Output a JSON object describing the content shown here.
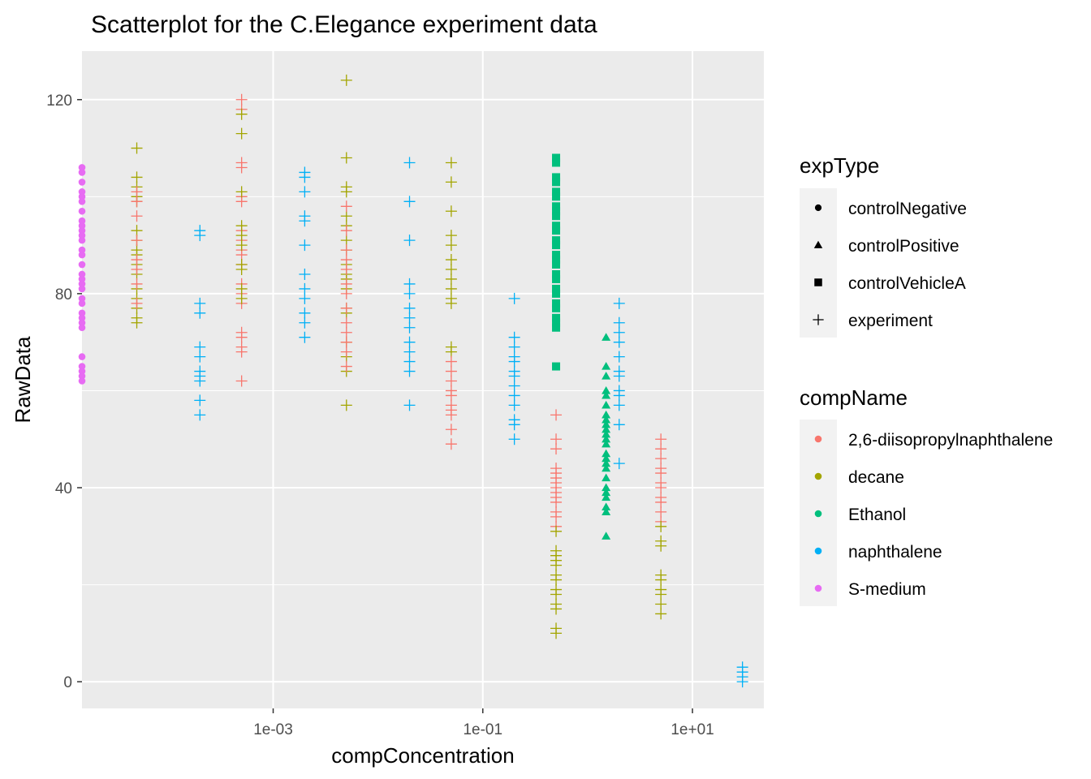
{
  "chart_data": {
    "type": "scatter",
    "title": "Scatterplot for the C.Elegance experiment data",
    "xlabel": "compConcentration",
    "ylabel": "RawData",
    "x_scale": "log10",
    "xlim": [
      1.5e-05,
      48
    ],
    "ylim": [
      -5.5,
      130
    ],
    "x_ticks": [
      {
        "value": 0.001,
        "label": "1e-03"
      },
      {
        "value": 0.1,
        "label": "1e-01"
      },
      {
        "value": 10,
        "label": "1e+01"
      }
    ],
    "y_ticks": [
      {
        "value": 0,
        "label": "0"
      },
      {
        "value": 40,
        "label": "40"
      },
      {
        "value": 80,
        "label": "80"
      },
      {
        "value": 120,
        "label": "120"
      }
    ],
    "grid": true,
    "legend_position": "right",
    "legend_shape": {
      "title": "expType",
      "entries": [
        {
          "name": "controlNegative",
          "shape": "circle"
        },
        {
          "name": "controlPositive",
          "shape": "triangle"
        },
        {
          "name": "controlVehicleA",
          "shape": "square"
        },
        {
          "name": "experiment",
          "shape": "plus"
        }
      ]
    },
    "legend_color": {
      "title": "compName",
      "entries": [
        {
          "name": "2,6-diisopropylnaphthalene",
          "color": "#F8766D"
        },
        {
          "name": "decane",
          "color": "#A3A500"
        },
        {
          "name": "Ethanol",
          "color": "#00BF7D"
        },
        {
          "name": "naphthalene",
          "color": "#00B0F6"
        },
        {
          "name": "S-medium",
          "color": "#E76BF3"
        }
      ]
    },
    "series": [
      {
        "comp": "S-medium",
        "exp": "controlNegative",
        "x": 1.5e-05,
        "y": [
          106,
          105,
          103,
          101,
          100,
          99,
          97,
          95,
          94,
          93,
          92,
          91,
          89,
          88,
          86,
          84,
          83,
          82,
          81,
          79,
          78,
          76,
          75,
          74,
          73,
          67,
          65,
          64,
          63,
          62
        ]
      },
      {
        "comp": "decane",
        "exp": "experiment",
        "x": 5e-05,
        "y": [
          110,
          104,
          102,
          100,
          99,
          93,
          91,
          89,
          88,
          86,
          84,
          81,
          79,
          77,
          75,
          74
        ]
      },
      {
        "comp": "2,6-diisopropylnaphthalene",
        "exp": "experiment",
        "x": 5e-05,
        "y": [
          101,
          99,
          96,
          91,
          87,
          85,
          82,
          78
        ]
      },
      {
        "comp": "naphthalene",
        "exp": "experiment",
        "x": 0.0002,
        "y": [
          93,
          92,
          78,
          76,
          69,
          67,
          64,
          63,
          62,
          58,
          55
        ]
      },
      {
        "comp": "2,6-diisopropylnaphthalene",
        "exp": "experiment",
        "x": 0.0005,
        "y": [
          120,
          118,
          107,
          106,
          100,
          99,
          93,
          91,
          89,
          88,
          86,
          82,
          80,
          78,
          72,
          71,
          69,
          68,
          62
        ]
      },
      {
        "comp": "decane",
        "exp": "experiment",
        "x": 0.0005,
        "y": [
          117,
          113,
          101,
          94,
          92,
          90,
          86,
          85,
          81,
          79
        ]
      },
      {
        "comp": "naphthalene",
        "exp": "experiment",
        "x": 0.002,
        "y": [
          105,
          104,
          101,
          96,
          95,
          90,
          84,
          81,
          79,
          76,
          74,
          71
        ]
      },
      {
        "comp": "decane",
        "exp": "experiment",
        "x": 0.005,
        "y": [
          124,
          108,
          102,
          101,
          96,
          94,
          91,
          89,
          86,
          84,
          83,
          81,
          77,
          76,
          70,
          67,
          64,
          57
        ]
      },
      {
        "comp": "2,6-diisopropylnaphthalene",
        "exp": "experiment",
        "x": 0.005,
        "y": [
          98,
          93,
          89,
          87,
          85,
          82,
          80,
          77,
          74,
          72,
          70,
          68,
          65
        ]
      },
      {
        "comp": "naphthalene",
        "exp": "experiment",
        "x": 0.02,
        "y": [
          107,
          99,
          91,
          82,
          80,
          77,
          75,
          73,
          70,
          68,
          66,
          64,
          57
        ]
      },
      {
        "comp": "decane",
        "exp": "experiment",
        "x": 0.05,
        "y": [
          107,
          103,
          97,
          92,
          90,
          87,
          85,
          83,
          81,
          79,
          78,
          69,
          68
        ]
      },
      {
        "comp": "2,6-diisopropylnaphthalene",
        "exp": "experiment",
        "x": 0.05,
        "y": [
          66,
          64,
          62,
          60,
          59,
          57,
          56,
          55,
          52,
          49
        ]
      },
      {
        "comp": "naphthalene",
        "exp": "experiment",
        "x": 0.2,
        "y": [
          79,
          71,
          69,
          67,
          66,
          64,
          63,
          61,
          59,
          57,
          54,
          53,
          50
        ]
      },
      {
        "comp": "Ethanol",
        "exp": "controlVehicleA",
        "x": 0.5,
        "y": [
          108,
          107,
          104,
          103,
          101,
          100,
          98,
          97,
          96,
          94,
          93,
          91,
          90,
          88,
          87,
          86,
          84,
          83,
          81,
          80,
          78,
          77,
          75,
          74,
          73,
          65
        ]
      },
      {
        "comp": "2,6-diisopropylnaphthalene",
        "exp": "experiment",
        "x": 0.5,
        "y": [
          55,
          50,
          48,
          44,
          43,
          42,
          41,
          40,
          39,
          38,
          37,
          35,
          34,
          32
        ]
      },
      {
        "comp": "decane",
        "exp": "experiment",
        "x": 0.5,
        "y": [
          31,
          27,
          26,
          25,
          24,
          22,
          21,
          19,
          18,
          16,
          15,
          11,
          10
        ]
      },
      {
        "comp": "Ethanol",
        "exp": "controlPositive",
        "x": 1.5,
        "y": [
          71,
          65,
          63,
          60,
          59,
          57,
          55,
          54,
          53,
          52,
          51,
          50,
          49,
          47,
          46,
          45,
          44,
          42,
          40,
          39,
          38,
          36,
          35,
          30
        ]
      },
      {
        "comp": "naphthalene",
        "exp": "experiment",
        "x": 2,
        "y": [
          78,
          74,
          72,
          70,
          67,
          64,
          63,
          60,
          59,
          57,
          53,
          45
        ]
      },
      {
        "comp": "2,6-diisopropylnaphthalene",
        "exp": "experiment",
        "x": 5,
        "y": [
          50,
          48,
          46,
          44,
          43,
          41,
          40,
          38,
          37,
          35,
          33
        ]
      },
      {
        "comp": "decane",
        "exp": "experiment",
        "x": 5,
        "y": [
          32,
          29,
          28,
          22,
          21,
          19,
          18,
          16,
          14
        ]
      },
      {
        "comp": "naphthalene",
        "exp": "experiment",
        "x": 30,
        "y": [
          3,
          2,
          1,
          0
        ]
      }
    ]
  }
}
